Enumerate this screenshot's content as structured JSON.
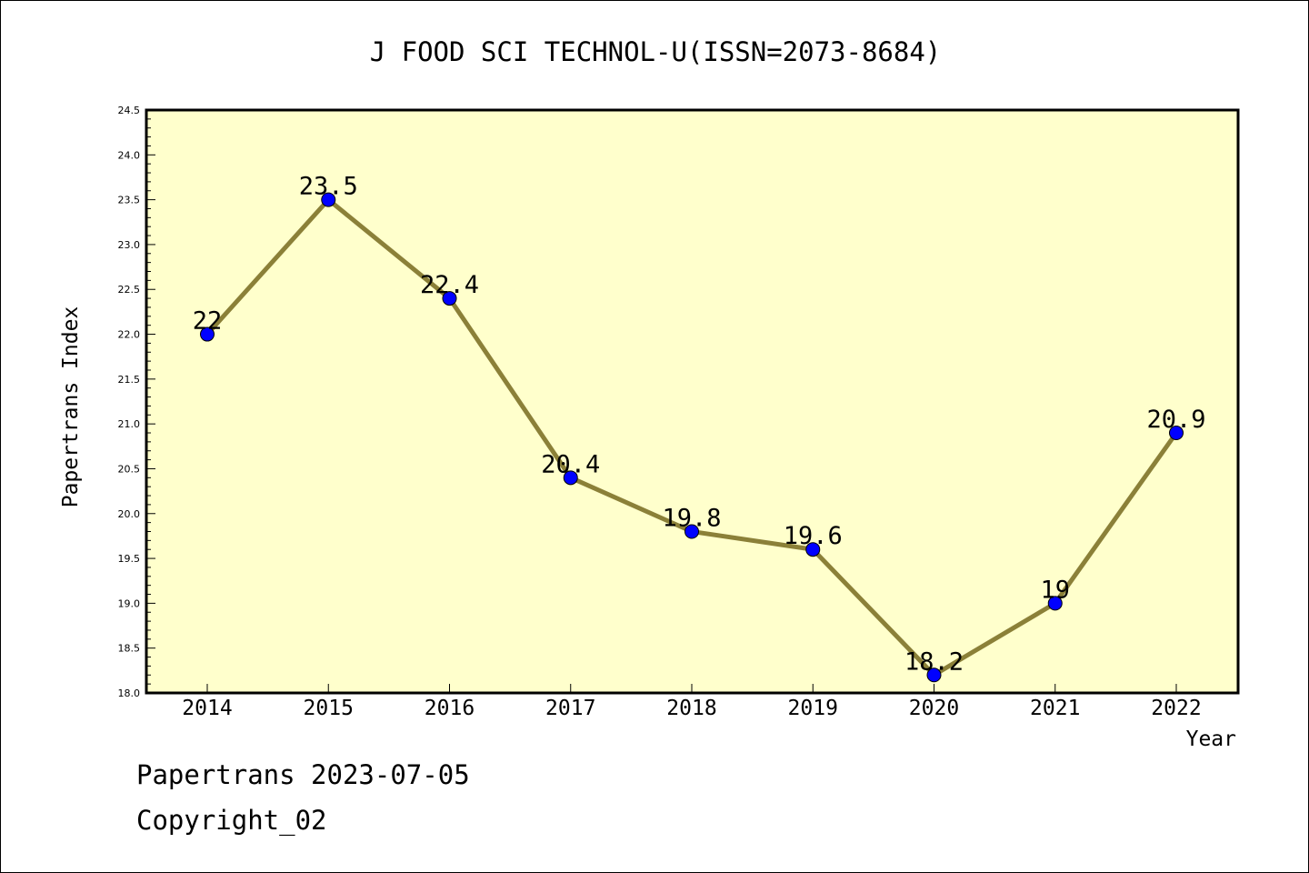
{
  "chart_data": {
    "type": "line",
    "title": "J FOOD SCI TECHNOL-U(ISSN=2073-8684)",
    "xlabel": "Year",
    "ylabel": "Papertrans Index",
    "categories": [
      "2014",
      "2015",
      "2016",
      "2017",
      "2018",
      "2019",
      "2020",
      "2021",
      "2022"
    ],
    "values": [
      22,
      23.5,
      22.4,
      20.4,
      19.8,
      19.6,
      18.2,
      19,
      20.9
    ],
    "data_labels": [
      "22",
      "23.5",
      "22.4",
      "20.4",
      "19.8",
      "19.6",
      "18.2",
      "19",
      "20.9"
    ],
    "y_ticks": [
      "18.0",
      "18.5",
      "19.0",
      "19.5",
      "20.0",
      "20.5",
      "21.0",
      "21.5",
      "22.0",
      "22.5",
      "23.0",
      "23.5",
      "24.0",
      "24.5"
    ],
    "ylim": [
      18.0,
      24.5
    ],
    "grid": false,
    "colors": {
      "plot_background": "#ffffcc",
      "line": "#8b8038",
      "marker": "#0000ff"
    }
  },
  "footer": {
    "date_line": "Papertrans 2023-07-05",
    "copyright": "Copyright_02"
  }
}
